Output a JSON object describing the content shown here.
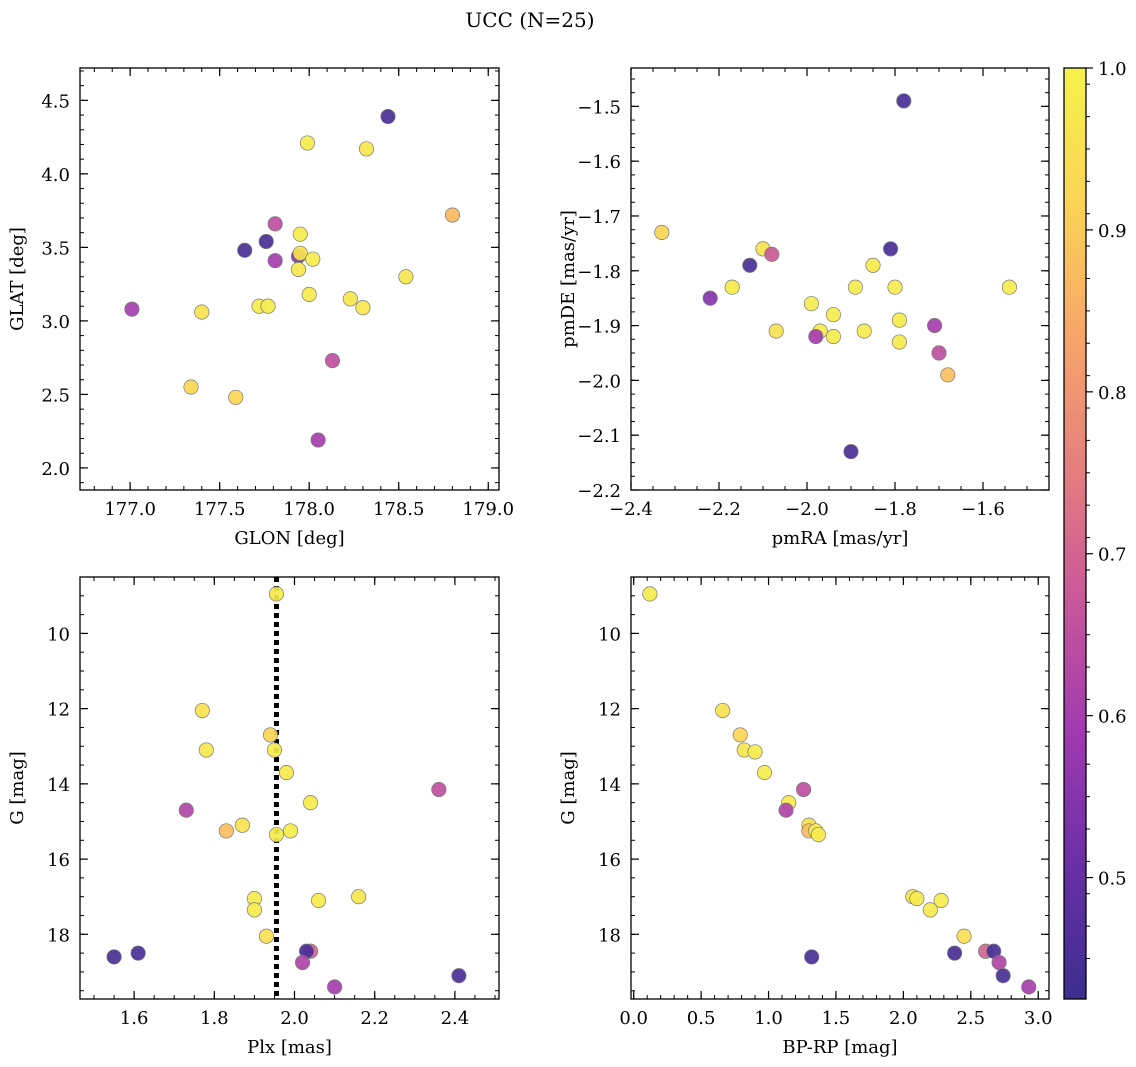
{
  "figure": {
    "title": "UCC (N=25)"
  },
  "colorbar": {
    "range": [
      0.425,
      1.0
    ],
    "ticks": [
      0.5,
      0.6,
      0.7,
      0.8,
      0.9,
      1.0
    ],
    "tick_labels": [
      "0.5",
      "0.6",
      "0.7",
      "0.8",
      "0.9",
      "1.0"
    ],
    "colormap": "plasma-like",
    "stops": [
      "#3b2f8f",
      "#6a2fa6",
      "#a03ab0",
      "#c8579a",
      "#e57f7e",
      "#f7a66a",
      "#fbd455",
      "#f5f24a"
    ]
  },
  "chart_data": [
    {
      "type": "scatter",
      "xlabel": "GLON [deg]",
      "ylabel": "GLAT [deg]",
      "xlim": [
        176.72,
        179.06
      ],
      "ylim": [
        1.85,
        4.72
      ],
      "y_inverted": false,
      "xticks": [
        177.0,
        177.5,
        178.0,
        178.5,
        179.0
      ],
      "xtick_labels": [
        "177.0",
        "177.5",
        "178.0",
        "178.5",
        "179.0"
      ],
      "yticks": [
        2.0,
        2.5,
        3.0,
        3.5,
        4.0,
        4.5
      ],
      "ytick_labels": [
        "2.0",
        "2.5",
        "3.0",
        "3.5",
        "4.0",
        "4.5"
      ],
      "points": [
        {
          "x": 178.44,
          "y": 4.39,
          "c": 0.45
        },
        {
          "x": 177.99,
          "y": 4.21,
          "c": 0.98
        },
        {
          "x": 178.32,
          "y": 4.17,
          "c": 0.97
        },
        {
          "x": 178.8,
          "y": 3.72,
          "c": 0.87
        },
        {
          "x": 177.81,
          "y": 3.66,
          "c": 0.65
        },
        {
          "x": 177.95,
          "y": 3.59,
          "c": 0.98
        },
        {
          "x": 177.76,
          "y": 3.54,
          "c": 0.45
        },
        {
          "x": 177.64,
          "y": 3.48,
          "c": 0.45
        },
        {
          "x": 177.94,
          "y": 3.44,
          "c": 0.55
        },
        {
          "x": 177.95,
          "y": 3.46,
          "c": 0.96
        },
        {
          "x": 178.02,
          "y": 3.42,
          "c": 0.98
        },
        {
          "x": 177.81,
          "y": 3.41,
          "c": 0.6
        },
        {
          "x": 177.94,
          "y": 3.35,
          "c": 0.97
        },
        {
          "x": 178.54,
          "y": 3.3,
          "c": 0.97
        },
        {
          "x": 178.0,
          "y": 3.18,
          "c": 0.98
        },
        {
          "x": 178.23,
          "y": 3.15,
          "c": 0.97
        },
        {
          "x": 177.72,
          "y": 3.1,
          "c": 0.98
        },
        {
          "x": 177.77,
          "y": 3.1,
          "c": 0.98
        },
        {
          "x": 178.3,
          "y": 3.09,
          "c": 0.97
        },
        {
          "x": 177.01,
          "y": 3.08,
          "c": 0.6
        },
        {
          "x": 177.4,
          "y": 3.06,
          "c": 0.96
        },
        {
          "x": 178.13,
          "y": 2.73,
          "c": 0.65
        },
        {
          "x": 177.34,
          "y": 2.55,
          "c": 0.93
        },
        {
          "x": 177.59,
          "y": 2.48,
          "c": 0.93
        },
        {
          "x": 178.05,
          "y": 2.19,
          "c": 0.6
        }
      ]
    },
    {
      "type": "scatter",
      "xlabel": "pmRA [mas/yr]",
      "ylabel": "pmDE [mas/yr]",
      "xlim": [
        -2.4,
        -1.45
      ],
      "ylim": [
        -2.2,
        -1.43
      ],
      "y_inverted": false,
      "xticks": [
        -2.4,
        -2.2,
        -2.0,
        -1.8,
        -1.6
      ],
      "xtick_labels": [
        "−2.4",
        "−2.2",
        "−2.0",
        "−1.8",
        "−1.6"
      ],
      "yticks": [
        -2.2,
        -2.1,
        -2.0,
        -1.9,
        -1.8,
        -1.7,
        -1.6,
        -1.5
      ],
      "ytick_labels": [
        "−2.2",
        "−2.1",
        "−2.0",
        "−1.9",
        "−1.8",
        "−1.7",
        "−1.6",
        "−1.5"
      ],
      "points": [
        {
          "x": -1.78,
          "y": -1.49,
          "c": 0.45
        },
        {
          "x": -2.33,
          "y": -1.73,
          "c": 0.92
        },
        {
          "x": -2.1,
          "y": -1.76,
          "c": 0.96
        },
        {
          "x": -1.81,
          "y": -1.76,
          "c": 0.45
        },
        {
          "x": -2.08,
          "y": -1.77,
          "c": 0.68
        },
        {
          "x": -2.13,
          "y": -1.79,
          "c": 0.45
        },
        {
          "x": -1.85,
          "y": -1.79,
          "c": 0.98
        },
        {
          "x": -2.22,
          "y": -1.85,
          "c": 0.55
        },
        {
          "x": -2.17,
          "y": -1.83,
          "c": 0.98
        },
        {
          "x": -1.89,
          "y": -1.83,
          "c": 0.98
        },
        {
          "x": -1.8,
          "y": -1.83,
          "c": 0.98
        },
        {
          "x": -1.54,
          "y": -1.83,
          "c": 0.98
        },
        {
          "x": -1.99,
          "y": -1.86,
          "c": 0.98
        },
        {
          "x": -1.94,
          "y": -1.88,
          "c": 0.98
        },
        {
          "x": -1.79,
          "y": -1.89,
          "c": 0.98
        },
        {
          "x": -1.71,
          "y": -1.9,
          "c": 0.6
        },
        {
          "x": -2.07,
          "y": -1.91,
          "c": 0.96
        },
        {
          "x": -1.97,
          "y": -1.91,
          "c": 0.98
        },
        {
          "x": -1.87,
          "y": -1.91,
          "c": 0.98
        },
        {
          "x": -1.98,
          "y": -1.92,
          "c": 0.6
        },
        {
          "x": -1.94,
          "y": -1.92,
          "c": 0.98
        },
        {
          "x": -1.79,
          "y": -1.93,
          "c": 0.98
        },
        {
          "x": -1.7,
          "y": -1.95,
          "c": 0.65
        },
        {
          "x": -1.68,
          "y": -1.99,
          "c": 0.88
        },
        {
          "x": -1.9,
          "y": -2.13,
          "c": 0.45
        }
      ]
    },
    {
      "type": "scatter",
      "xlabel": "Plx [mas]",
      "ylabel": "G [mag]",
      "xlim": [
        1.465,
        2.51
      ],
      "ylim": [
        19.72,
        8.5
      ],
      "y_inverted": true,
      "xticks": [
        1.6,
        1.8,
        2.0,
        2.2,
        2.4
      ],
      "xtick_labels": [
        "1.6",
        "1.8",
        "2.0",
        "2.2",
        "2.4"
      ],
      "yticks": [
        10,
        12,
        14,
        16,
        18
      ],
      "ytick_labels": [
        "10",
        "12",
        "14",
        "16",
        "18"
      ],
      "vline": {
        "x": 1.955,
        "style": "dotted"
      },
      "points": [
        {
          "x": 1.955,
          "y": 8.95,
          "c": 0.98
        },
        {
          "x": 1.77,
          "y": 12.05,
          "c": 0.96
        },
        {
          "x": 1.94,
          "y": 12.7,
          "c": 0.92
        },
        {
          "x": 1.78,
          "y": 13.1,
          "c": 0.97
        },
        {
          "x": 1.95,
          "y": 13.1,
          "c": 0.98
        },
        {
          "x": 1.98,
          "y": 13.7,
          "c": 0.98
        },
        {
          "x": 2.36,
          "y": 14.15,
          "c": 0.65
        },
        {
          "x": 2.04,
          "y": 14.5,
          "c": 0.98
        },
        {
          "x": 1.73,
          "y": 14.7,
          "c": 0.62
        },
        {
          "x": 1.87,
          "y": 15.1,
          "c": 0.96
        },
        {
          "x": 1.83,
          "y": 15.25,
          "c": 0.88
        },
        {
          "x": 1.99,
          "y": 15.25,
          "c": 0.98
        },
        {
          "x": 1.955,
          "y": 15.35,
          "c": 0.98
        },
        {
          "x": 2.16,
          "y": 17.0,
          "c": 0.97
        },
        {
          "x": 1.9,
          "y": 17.05,
          "c": 0.98
        },
        {
          "x": 2.06,
          "y": 17.1,
          "c": 0.98
        },
        {
          "x": 1.9,
          "y": 17.35,
          "c": 0.98
        },
        {
          "x": 1.93,
          "y": 18.05,
          "c": 0.95
        },
        {
          "x": 2.04,
          "y": 18.45,
          "c": 0.7
        },
        {
          "x": 2.03,
          "y": 18.45,
          "c": 0.45
        },
        {
          "x": 1.61,
          "y": 18.5,
          "c": 0.45
        },
        {
          "x": 1.55,
          "y": 18.6,
          "c": 0.45
        },
        {
          "x": 2.02,
          "y": 18.75,
          "c": 0.62
        },
        {
          "x": 2.41,
          "y": 19.1,
          "c": 0.45
        },
        {
          "x": 2.1,
          "y": 19.4,
          "c": 0.6
        }
      ]
    },
    {
      "type": "scatter",
      "xlabel": "BP-RP [mag]",
      "ylabel": "G [mag]",
      "xlim": [
        -0.02,
        3.08
      ],
      "ylim": [
        19.72,
        8.5
      ],
      "y_inverted": true,
      "xticks": [
        0.0,
        0.5,
        1.0,
        1.5,
        2.0,
        2.5,
        3.0
      ],
      "xtick_labels": [
        "0.0",
        "0.5",
        "1.0",
        "1.5",
        "2.0",
        "2.5",
        "3.0"
      ],
      "yticks": [
        10,
        12,
        14,
        16,
        18
      ],
      "ytick_labels": [
        "10",
        "12",
        "14",
        "16",
        "18"
      ],
      "points": [
        {
          "x": 0.12,
          "y": 8.95,
          "c": 0.98
        },
        {
          "x": 0.66,
          "y": 12.05,
          "c": 0.96
        },
        {
          "x": 0.79,
          "y": 12.7,
          "c": 0.92
        },
        {
          "x": 0.82,
          "y": 13.1,
          "c": 0.97
        },
        {
          "x": 0.9,
          "y": 13.15,
          "c": 0.98
        },
        {
          "x": 0.97,
          "y": 13.7,
          "c": 0.98
        },
        {
          "x": 1.26,
          "y": 14.15,
          "c": 0.65
        },
        {
          "x": 1.15,
          "y": 14.5,
          "c": 0.98
        },
        {
          "x": 1.13,
          "y": 14.7,
          "c": 0.62
        },
        {
          "x": 1.3,
          "y": 15.1,
          "c": 0.96
        },
        {
          "x": 1.3,
          "y": 15.25,
          "c": 0.88
        },
        {
          "x": 1.35,
          "y": 15.25,
          "c": 0.98
        },
        {
          "x": 1.37,
          "y": 15.35,
          "c": 0.98
        },
        {
          "x": 2.07,
          "y": 17.0,
          "c": 0.97
        },
        {
          "x": 2.1,
          "y": 17.05,
          "c": 0.98
        },
        {
          "x": 2.28,
          "y": 17.1,
          "c": 0.98
        },
        {
          "x": 2.2,
          "y": 17.35,
          "c": 0.98
        },
        {
          "x": 2.45,
          "y": 18.05,
          "c": 0.95
        },
        {
          "x": 2.61,
          "y": 18.45,
          "c": 0.7
        },
        {
          "x": 2.67,
          "y": 18.45,
          "c": 0.45
        },
        {
          "x": 2.38,
          "y": 18.5,
          "c": 0.45
        },
        {
          "x": 1.32,
          "y": 18.6,
          "c": 0.45
        },
        {
          "x": 2.71,
          "y": 18.75,
          "c": 0.62
        },
        {
          "x": 2.74,
          "y": 19.1,
          "c": 0.45
        },
        {
          "x": 2.93,
          "y": 19.4,
          "c": 0.6
        }
      ]
    }
  ]
}
